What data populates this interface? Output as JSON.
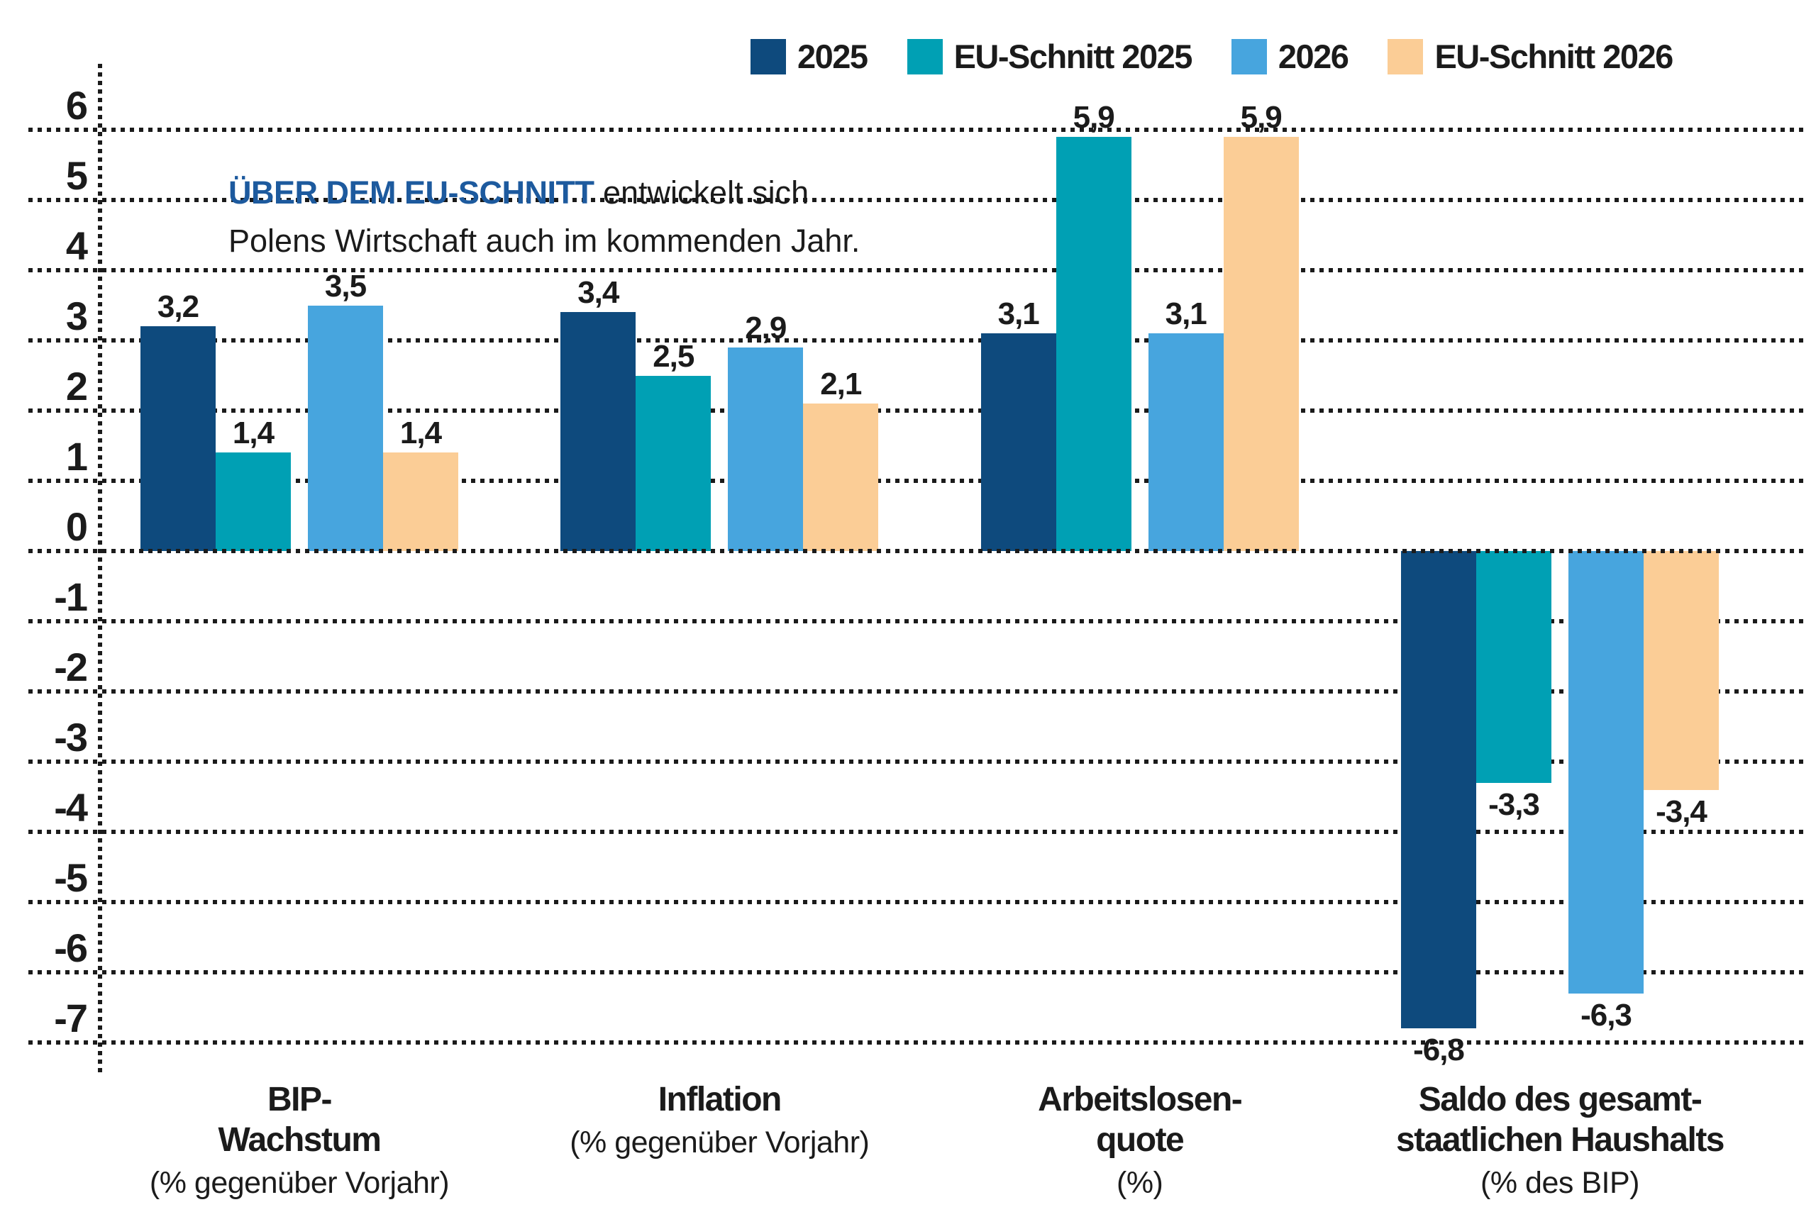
{
  "chart_data": {
    "type": "bar",
    "title": "",
    "legend_position": "top-right",
    "grid": "dotted",
    "text_color": "#1b1b1b",
    "annotation": {
      "highlight": "ÜBER DEM EU-SCHNITT",
      "rest": " entwickelt sich",
      "line2": "Polens Wirtschaft auch im kommenden Jahr.",
      "highlight_color": "#1d5a9e"
    },
    "y_axis": {
      "ticks": [
        6,
        5,
        4,
        3,
        2,
        1,
        0,
        -1,
        -2,
        -3,
        -4,
        -5,
        -6,
        -7
      ],
      "ylim": [
        -7.5,
        6.5
      ]
    },
    "categories": [
      {
        "label_lines": [
          "BIP-",
          "Wachstum"
        ],
        "sublabel": "(% gegenüber Vorjahr)"
      },
      {
        "label_lines": [
          "Inflation"
        ],
        "sublabel": "(% gegenüber Vorjahr)"
      },
      {
        "label_lines": [
          "Arbeitslosen-",
          "quote"
        ],
        "sublabel": "(%)"
      },
      {
        "label_lines": [
          "Saldo des gesamt-",
          "staatlichen Haushalts"
        ],
        "sublabel": "(% des BIP)"
      }
    ],
    "series": [
      {
        "name": "2025",
        "color": "#0e4a7d",
        "values": [
          3.2,
          3.4,
          3.1,
          -6.8
        ],
        "display_values": [
          "3,2",
          "3,4",
          "3,1",
          "-6,8"
        ]
      },
      {
        "name": "EU-Schnitt 2025",
        "color": "#00a0b4",
        "values": [
          1.4,
          2.5,
          5.9,
          -3.3
        ],
        "display_values": [
          "1,4",
          "2,5",
          "5,9",
          "-3,3"
        ]
      },
      {
        "name": "2026",
        "color": "#47a5de",
        "values": [
          3.5,
          2.9,
          3.1,
          -6.3
        ],
        "display_values": [
          "3,5",
          "2,9",
          "3,1",
          "-6,3"
        ]
      },
      {
        "name": "EU-Schnitt 2026",
        "color": "#fbcd96",
        "values": [
          1.4,
          2.1,
          5.9,
          -3.4
        ],
        "display_values": [
          "1,4",
          "2,1",
          "5,9",
          "-3,4"
        ]
      }
    ]
  }
}
